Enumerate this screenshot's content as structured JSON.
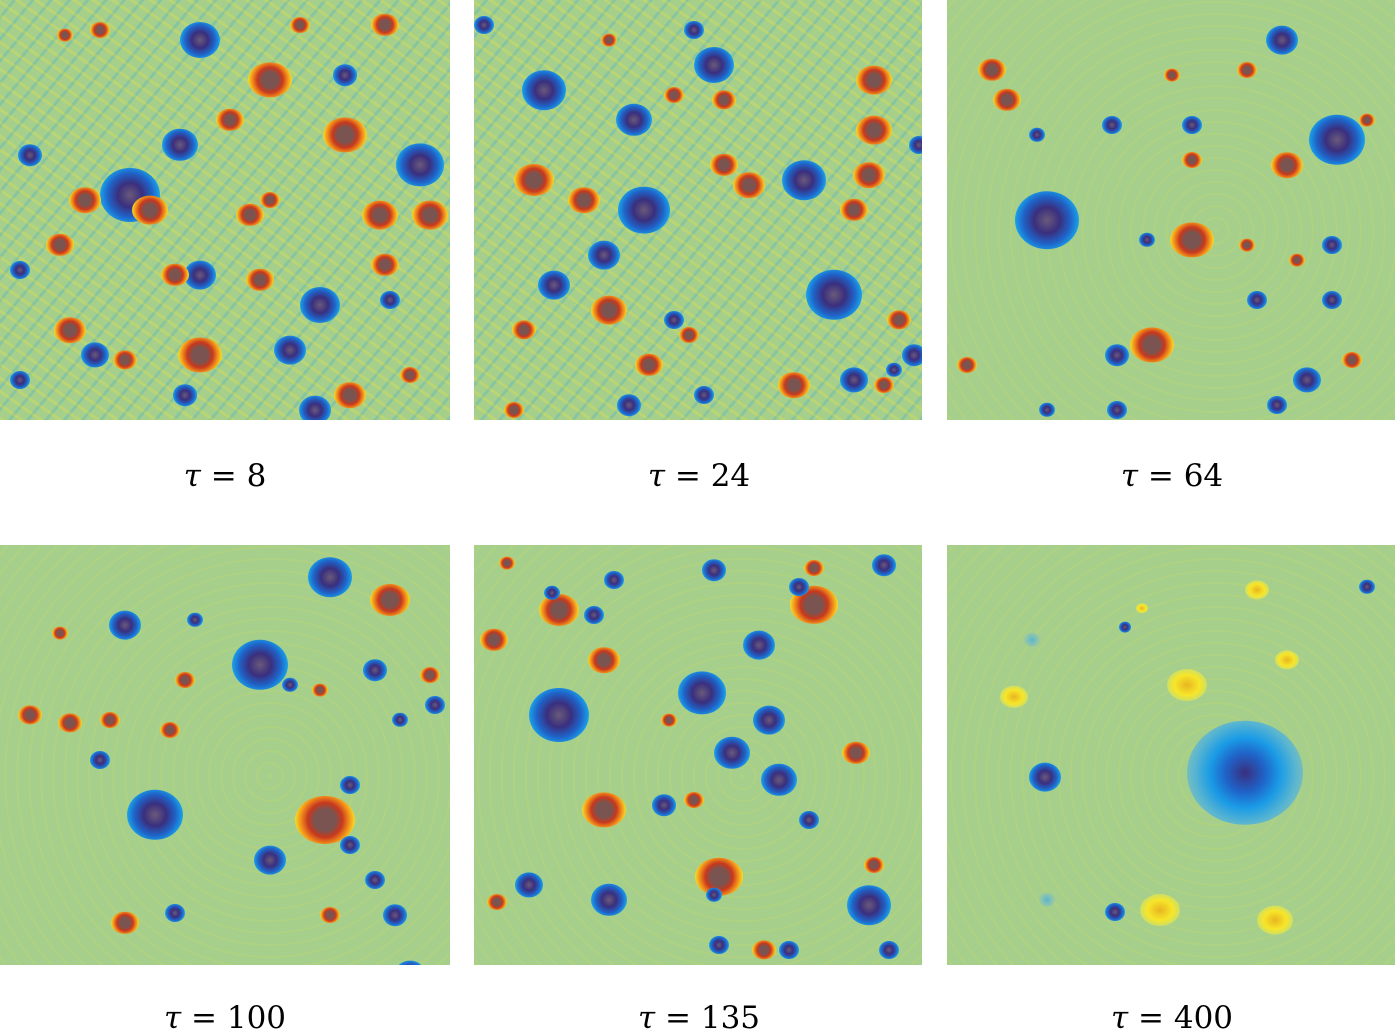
{
  "figure": {
    "description": "Vorticity field snapshots of decaying 2D turbulence in a square domain at successive times",
    "colormap": {
      "negative_strong": "#3a2f7e",
      "negative": "#1a8ee0",
      "neutral": "#a6cf8c",
      "positive": "#f7e62a",
      "positive_strong": "#c8381e",
      "core": "#7a5450"
    },
    "panels": [
      {
        "id": "p1",
        "label_symbol": "τ",
        "label_eq": "=",
        "label_value": "8",
        "caption": "τ = 8",
        "row": 0,
        "col": 0,
        "density": "high"
      },
      {
        "id": "p2",
        "label_symbol": "τ",
        "label_eq": "=",
        "label_value": "24",
        "caption": "τ = 24",
        "row": 0,
        "col": 1,
        "density": "high"
      },
      {
        "id": "p3",
        "label_symbol": "τ",
        "label_eq": "=",
        "label_value": "64",
        "caption": "τ = 64",
        "row": 0,
        "col": 2,
        "density": "medium"
      },
      {
        "id": "p4",
        "label_symbol": "τ",
        "label_eq": "=",
        "label_value": "100",
        "caption": "τ = 100",
        "row": 1,
        "col": 0,
        "density": "medium"
      },
      {
        "id": "p5",
        "label_symbol": "τ",
        "label_eq": "=",
        "label_value": "135",
        "caption": "τ = 135",
        "row": 1,
        "col": 1,
        "density": "medium"
      },
      {
        "id": "p6",
        "label_symbol": "τ",
        "label_eq": "=",
        "label_value": "400",
        "caption": "τ = 400",
        "row": 1,
        "col": 2,
        "density": "low"
      }
    ]
  }
}
